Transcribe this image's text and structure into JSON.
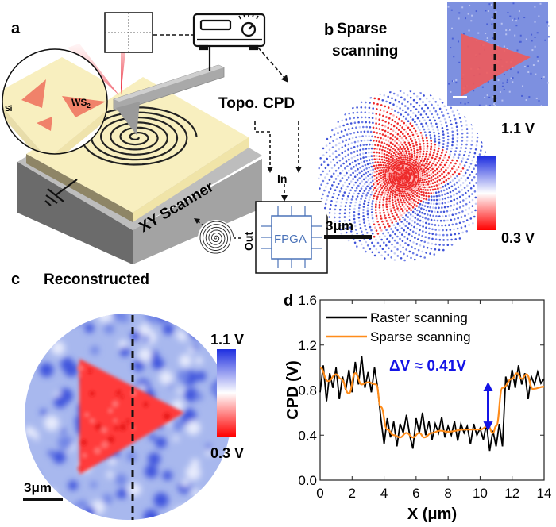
{
  "panel_a": {
    "label": "a",
    "inset_labels": {
      "si": "Si",
      "ws2_main": "WS",
      "ws2_sub": "2"
    },
    "signals": {
      "topo": "Topo.",
      "cpd": "CPD"
    },
    "fpga": {
      "label": "FPGA",
      "in": "In",
      "out": "Out"
    },
    "scanner_label": "XY Scanner",
    "colors": {
      "sample": "#f8efbf",
      "base": "#9a9a9a",
      "flake": "#f0826a",
      "laser": "#e8182a",
      "chip": "#4a72b8"
    }
  },
  "panel_b": {
    "label": "b",
    "title_line1": "Sparse",
    "title_line2": "scanning",
    "scale_bar": "3μm",
    "colorbar_max": "1.1 V",
    "colorbar_min": "0.3 V"
  },
  "panel_c": {
    "label": "c",
    "title": "Reconstructed",
    "scale_bar": "3μm",
    "colorbar_max": "1.1 V",
    "colorbar_min": "0.3 V"
  },
  "panel_d": {
    "label": "d",
    "annotation": "ΔV ≈ 0.41V"
  },
  "chart_data": {
    "type": "line",
    "xlabel": "X (μm)",
    "ylabel": "CPD (V)",
    "xlim": [
      0,
      14
    ],
    "ylim": [
      0,
      1.6
    ],
    "xticks": [
      "0",
      "2",
      "4",
      "6",
      "8",
      "10",
      "12",
      "14"
    ],
    "yticks": [
      "0.0",
      "0.4",
      "0.8",
      "1.2",
      "1.6"
    ],
    "legend_position": "top-left",
    "annotation": {
      "text": "ΔV ≈ 0.41V",
      "x": 10.5,
      "y_from": 0.45,
      "y_to": 0.86
    },
    "series": [
      {
        "name": "Raster scanning",
        "color": "#000000",
        "x_start": 0,
        "x_step": 0.2,
        "values": [
          0.78,
          1.02,
          0.7,
          0.95,
          0.82,
          1.0,
          0.72,
          0.92,
          0.8,
          0.98,
          0.78,
          1.05,
          0.85,
          1.1,
          0.82,
          0.96,
          0.78,
          1.0,
          0.82,
          0.55,
          0.32,
          0.55,
          0.38,
          0.52,
          0.3,
          0.5,
          0.42,
          0.58,
          0.4,
          0.28,
          0.55,
          0.42,
          0.6,
          0.4,
          0.52,
          0.36,
          0.5,
          0.42,
          0.56,
          0.38,
          0.48,
          0.4,
          0.52,
          0.35,
          0.5,
          0.42,
          0.48,
          0.32,
          0.5,
          0.4,
          0.46,
          0.36,
          0.5,
          0.26,
          0.44,
          0.3,
          0.5,
          0.3,
          0.92,
          0.8,
          0.98,
          0.82,
          1.02,
          0.85,
          0.95,
          0.72,
          0.92,
          0.85,
          0.96,
          0.86,
          0.9
        ]
      },
      {
        "name": "Sparse scanning",
        "color": "#ff8c1a",
        "x": [
          0,
          0.5,
          1,
          1.3,
          1.8,
          2.2,
          2.6,
          3,
          3.5,
          3.8,
          4.2,
          4.6,
          5,
          5.4,
          5.8,
          6.2,
          6.5,
          7,
          7.5,
          8,
          9,
          10,
          10.5,
          10.8,
          11,
          11.4,
          12,
          12.3,
          12.6,
          12.9,
          13.3,
          14
        ],
        "values": [
          1.0,
          0.88,
          0.94,
          0.9,
          0.77,
          0.95,
          0.85,
          0.87,
          0.85,
          0.65,
          0.45,
          0.4,
          0.38,
          0.42,
          0.38,
          0.42,
          0.38,
          0.42,
          0.44,
          0.43,
          0.45,
          0.45,
          0.48,
          0.42,
          0.48,
          0.82,
          0.9,
          0.95,
          0.9,
          0.94,
          0.81,
          0.83
        ]
      }
    ]
  }
}
